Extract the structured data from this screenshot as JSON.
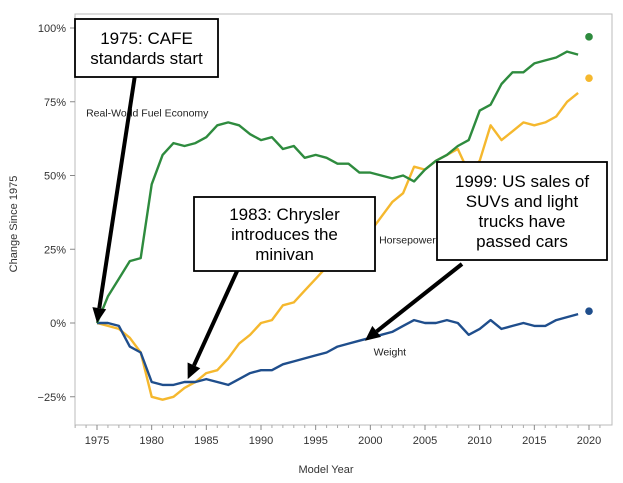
{
  "chart_data": {
    "type": "line",
    "title": "",
    "xlabel": "Model Year",
    "ylabel": "Change Since 1975",
    "xlim": [
      1972,
      2022
    ],
    "ylim": [
      -0.35,
      1.02
    ],
    "x_ticks": [
      1975,
      1980,
      1985,
      1990,
      1995,
      2000,
      2005,
      2010,
      2015,
      2020
    ],
    "y_ticks": [
      {
        "value": -0.25,
        "label": "−25%"
      },
      {
        "value": 0,
        "label": "0%"
      },
      {
        "value": 0.25,
        "label": "25%"
      },
      {
        "value": 0.5,
        "label": "50%"
      },
      {
        "value": 0.75,
        "label": "75%"
      },
      {
        "value": 1.0,
        "label": "100%"
      }
    ],
    "grid": false,
    "series": [
      {
        "name": "Real-World Fuel Economy",
        "color": "#2e8b3e",
        "label_x": 1974.0,
        "label_y": 0.7,
        "projection": {
          "x": 2020,
          "y": 0.97
        },
        "points": [
          [
            1975,
            0.0
          ],
          [
            1976,
            0.09
          ],
          [
            1977,
            0.15
          ],
          [
            1978,
            0.21
          ],
          [
            1979,
            0.22
          ],
          [
            1980,
            0.47
          ],
          [
            1981,
            0.57
          ],
          [
            1982,
            0.61
          ],
          [
            1983,
            0.6
          ],
          [
            1984,
            0.61
          ],
          [
            1985,
            0.63
          ],
          [
            1986,
            0.67
          ],
          [
            1987,
            0.68
          ],
          [
            1988,
            0.67
          ],
          [
            1989,
            0.64
          ],
          [
            1990,
            0.62
          ],
          [
            1991,
            0.63
          ],
          [
            1992,
            0.59
          ],
          [
            1993,
            0.6
          ],
          [
            1994,
            0.56
          ],
          [
            1995,
            0.57
          ],
          [
            1996,
            0.56
          ],
          [
            1997,
            0.54
          ],
          [
            1998,
            0.54
          ],
          [
            1999,
            0.51
          ],
          [
            2000,
            0.51
          ],
          [
            2001,
            0.5
          ],
          [
            2002,
            0.49
          ],
          [
            2003,
            0.5
          ],
          [
            2004,
            0.48
          ],
          [
            2005,
            0.52
          ],
          [
            2006,
            0.55
          ],
          [
            2007,
            0.57
          ],
          [
            2008,
            0.6
          ],
          [
            2009,
            0.62
          ],
          [
            2010,
            0.72
          ],
          [
            2011,
            0.74
          ],
          [
            2012,
            0.81
          ],
          [
            2013,
            0.85
          ],
          [
            2014,
            0.85
          ],
          [
            2015,
            0.88
          ],
          [
            2016,
            0.89
          ],
          [
            2017,
            0.9
          ],
          [
            2018,
            0.92
          ],
          [
            2019,
            0.91
          ]
        ]
      },
      {
        "name": "Horsepower",
        "color": "#f5b82e",
        "label_x": 2000.8,
        "label_y": 0.27,
        "projection": {
          "x": 2020,
          "y": 0.83
        },
        "points": [
          [
            1975,
            0.0
          ],
          [
            1976,
            -0.01
          ],
          [
            1977,
            -0.02
          ],
          [
            1978,
            -0.05
          ],
          [
            1979,
            -0.1
          ],
          [
            1980,
            -0.25
          ],
          [
            1981,
            -0.26
          ],
          [
            1982,
            -0.25
          ],
          [
            1983,
            -0.22
          ],
          [
            1984,
            -0.2
          ],
          [
            1985,
            -0.17
          ],
          [
            1986,
            -0.16
          ],
          [
            1987,
            -0.12
          ],
          [
            1988,
            -0.07
          ],
          [
            1989,
            -0.04
          ],
          [
            1990,
            0.0
          ],
          [
            1991,
            0.01
          ],
          [
            1992,
            0.06
          ],
          [
            1993,
            0.07
          ],
          [
            1994,
            0.11
          ],
          [
            1995,
            0.15
          ],
          [
            1996,
            0.19
          ],
          [
            1997,
            0.22
          ],
          [
            1998,
            0.24
          ],
          [
            1999,
            0.3
          ],
          [
            2000,
            0.31
          ],
          [
            2001,
            0.36
          ],
          [
            2002,
            0.41
          ],
          [
            2003,
            0.44
          ],
          [
            2004,
            0.53
          ],
          [
            2005,
            0.52
          ],
          [
            2006,
            0.55
          ],
          [
            2007,
            0.57
          ],
          [
            2008,
            0.59
          ],
          [
            2009,
            0.51
          ],
          [
            2010,
            0.55
          ],
          [
            2011,
            0.67
          ],
          [
            2012,
            0.62
          ],
          [
            2013,
            0.65
          ],
          [
            2014,
            0.68
          ],
          [
            2015,
            0.67
          ],
          [
            2016,
            0.68
          ],
          [
            2017,
            0.7
          ],
          [
            2018,
            0.75
          ],
          [
            2019,
            0.78
          ]
        ]
      },
      {
        "name": "Weight",
        "color": "#1f4e8c",
        "label_x": 2000.3,
        "label_y": -0.11,
        "projection": {
          "x": 2020,
          "y": 0.04
        },
        "points": [
          [
            1975,
            0.0
          ],
          [
            1976,
            0.0
          ],
          [
            1977,
            -0.01
          ],
          [
            1978,
            -0.08
          ],
          [
            1979,
            -0.1
          ],
          [
            1980,
            -0.2
          ],
          [
            1981,
            -0.21
          ],
          [
            1982,
            -0.21
          ],
          [
            1983,
            -0.2
          ],
          [
            1984,
            -0.2
          ],
          [
            1985,
            -0.19
          ],
          [
            1986,
            -0.2
          ],
          [
            1987,
            -0.21
          ],
          [
            1988,
            -0.19
          ],
          [
            1989,
            -0.17
          ],
          [
            1990,
            -0.16
          ],
          [
            1991,
            -0.16
          ],
          [
            1992,
            -0.14
          ],
          [
            1993,
            -0.13
          ],
          [
            1994,
            -0.12
          ],
          [
            1995,
            -0.11
          ],
          [
            1996,
            -0.1
          ],
          [
            1997,
            -0.08
          ],
          [
            1998,
            -0.07
          ],
          [
            1999,
            -0.06
          ],
          [
            2000,
            -0.05
          ],
          [
            2001,
            -0.04
          ],
          [
            2002,
            -0.03
          ],
          [
            2003,
            -0.01
          ],
          [
            2004,
            0.01
          ],
          [
            2005,
            0.0
          ],
          [
            2006,
            0.0
          ],
          [
            2007,
            0.01
          ],
          [
            2008,
            0.0
          ],
          [
            2009,
            -0.04
          ],
          [
            2010,
            -0.02
          ],
          [
            2011,
            0.01
          ],
          [
            2012,
            -0.02
          ],
          [
            2013,
            -0.01
          ],
          [
            2014,
            0.0
          ],
          [
            2015,
            -0.01
          ],
          [
            2016,
            -0.01
          ],
          [
            2017,
            0.01
          ],
          [
            2018,
            0.02
          ],
          [
            2019,
            0.03
          ]
        ]
      }
    ],
    "annotations": [
      {
        "lines": [
          "1975: CAFE",
          "standards start"
        ],
        "arrow_to": {
          "x": 1975,
          "y": 0.0
        },
        "box": "top-left"
      },
      {
        "lines": [
          "1983: Chrysler",
          "introduces the",
          "minivan"
        ],
        "arrow_to": {
          "x": 1983.3,
          "y": -0.19
        },
        "box": "center"
      },
      {
        "lines": [
          "1999: US sales of",
          "SUVs and light",
          "trucks have",
          "passed cars"
        ],
        "arrow_to": {
          "x": 1999.5,
          "y": -0.06
        },
        "box": "right"
      }
    ]
  }
}
